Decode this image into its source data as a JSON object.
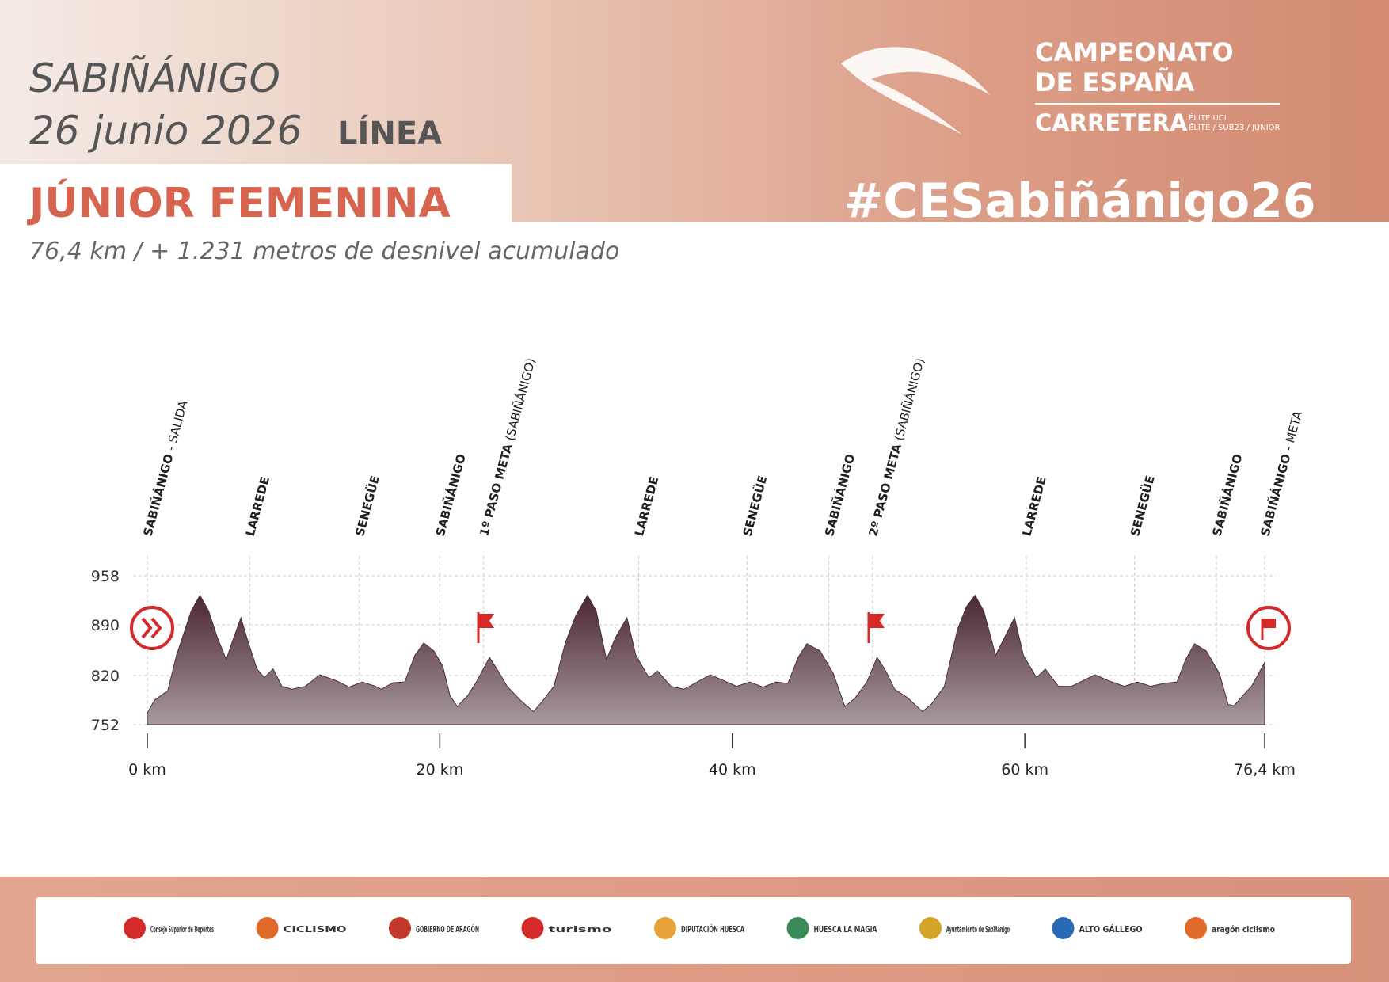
{
  "header": {
    "city": "SABIÑÁNIGO",
    "date": "26 junio 2026",
    "format": "LÍNEA",
    "category": "JÚNIOR FEMENINA",
    "subtitle": "76,4 km / + 1.231 metros de desnivel acumulado",
    "hashtag": "#CESabiñánigo26",
    "event": {
      "line1": "CAMPEONATO",
      "line2": "DE ESPAÑA",
      "line3": "CARRETERA",
      "tag1": "ÉLITE UCI",
      "tag2": "ÉLITE / SUB23 / JUNIOR"
    }
  },
  "chart_data": {
    "type": "area",
    "color": "#4d2c39",
    "x": [
      0,
      0.5,
      1.4,
      2.0,
      3.0,
      3.6,
      4.2,
      4.8,
      5.4,
      5.8,
      6.4,
      6.9,
      7.5,
      8.0,
      8.6,
      9.2,
      9.9,
      10.8,
      11.8,
      12.9,
      13.8,
      14.7,
      15.6,
      16.0,
      16.8,
      17.6,
      18.3,
      18.9,
      19.6,
      20.2,
      20.7,
      21.2,
      21.9,
      22.5,
      23.4,
      24.0,
      24.6,
      25.5,
      26.4,
      27.0,
      27.8,
      28.6,
      29.3,
      30.1,
      30.7,
      31.4,
      32.0,
      32.8,
      33.4,
      34.3,
      34.9,
      35.8,
      36.7,
      37.6,
      38.5,
      39.4,
      40.3,
      41.2,
      42.1,
      43.0,
      43.8,
      44.5,
      45.1,
      46.0,
      46.9,
      47.7,
      48.4,
      49.2,
      49.9,
      50.5,
      51.1,
      52.0,
      53.0,
      53.6,
      54.5,
      55.4,
      56.0,
      56.6,
      57.2,
      58.0,
      58.6,
      59.3,
      59.9,
      60.8,
      61.4,
      62.3,
      63.2,
      64.0,
      64.8,
      65.7,
      66.8,
      67.7,
      68.6,
      69.5,
      70.4,
      71.0,
      71.6,
      72.4,
      73.3,
      73.9,
      74.3,
      74.9,
      75.5,
      76.4
    ],
    "values": [
      768,
      786,
      799,
      848,
      909,
      931,
      909,
      872,
      842,
      866,
      900,
      866,
      829,
      817,
      829,
      805,
      801,
      805,
      821,
      813,
      804,
      811,
      805,
      801,
      810,
      811,
      848,
      865,
      854,
      833,
      792,
      777,
      792,
      811,
      845,
      826,
      805,
      786,
      770,
      784,
      805,
      866,
      903,
      931,
      909,
      842,
      872,
      900,
      848,
      817,
      826,
      805,
      801,
      811,
      821,
      813,
      805,
      811,
      804,
      811,
      809,
      845,
      864,
      854,
      823,
      777,
      789,
      811,
      845,
      826,
      801,
      789,
      770,
      780,
      805,
      884,
      915,
      931,
      909,
      848,
      872,
      900,
      848,
      817,
      829,
      805,
      805,
      813,
      821,
      813,
      805,
      811,
      805,
      809,
      811,
      842,
      864,
      854,
      823,
      780,
      778,
      792,
      805,
      838
    ],
    "xlim": [
      0,
      76.4
    ],
    "xticks": [
      {
        "value": 0,
        "label": "0 km"
      },
      {
        "value": 20,
        "label": "20 km"
      },
      {
        "value": 40,
        "label": "40 km"
      },
      {
        "value": 60,
        "label": "60 km"
      },
      {
        "value": 76.4,
        "label": "76,4 km"
      }
    ],
    "ylim": [
      752,
      958
    ],
    "yticks": [
      752,
      820,
      890,
      958
    ],
    "grid": true,
    "waypoints": [
      {
        "name": "SABIÑÁNIGO",
        "note": "- SALIDA",
        "km": 0
      },
      {
        "name": "LARREDE",
        "km": 7.0
      },
      {
        "name": "SENEGÜE",
        "km": 14.5
      },
      {
        "name": "SABIÑÁNIGO",
        "km": 20.0
      },
      {
        "name": "1º PASO META",
        "note": "(SABIÑÁNIGO)",
        "km": 23.0
      },
      {
        "name": "LARREDE",
        "km": 33.6
      },
      {
        "name": "SENEGÜE",
        "km": 41.0
      },
      {
        "name": "SABIÑÁNIGO",
        "km": 46.6
      },
      {
        "name": "2º PASO META",
        "note": "(SABIÑÁNIGO)",
        "km": 49.6
      },
      {
        "name": "LARREDE",
        "km": 60.1
      },
      {
        "name": "SENEGÜE",
        "km": 67.5
      },
      {
        "name": "SABIÑÁNIGO",
        "km": 73.1
      },
      {
        "name": "SABIÑÁNIGO",
        "note": "- META",
        "km": 76.4
      }
    ]
  },
  "sponsors": [
    "Consejo Superior de Deportes",
    "CICLISMO",
    "GOBIERNO DE ARAGÓN",
    "turismo",
    "DIPUTACIÓN HUESCA",
    "HUESCA LA MAGIA",
    "Ayuntamiento de Sabiñánigo",
    "ALTO GÁLLEGO",
    "aragón ciclismo"
  ]
}
